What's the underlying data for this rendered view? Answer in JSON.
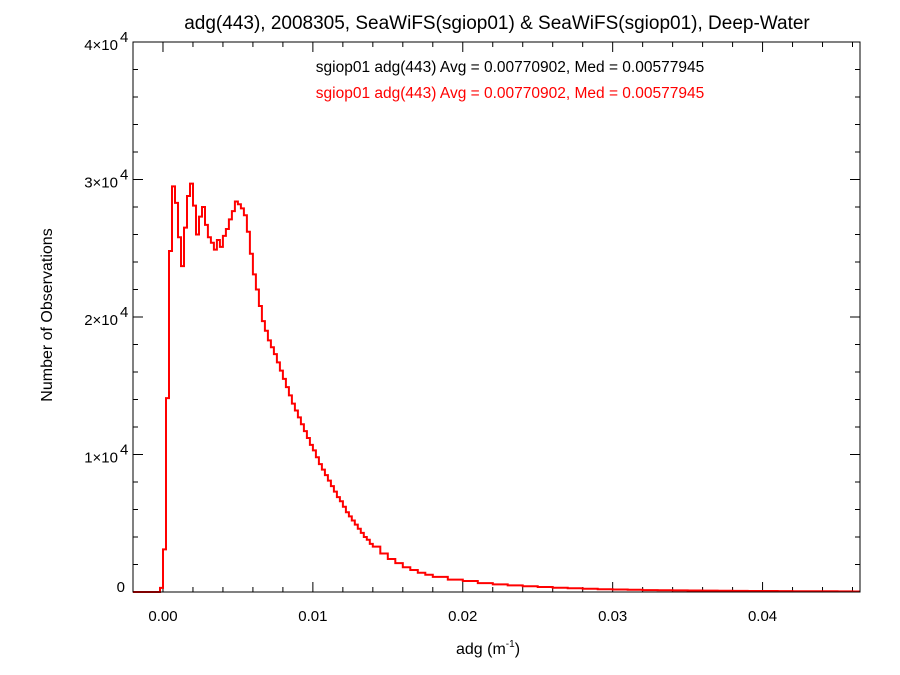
{
  "chart_data": {
    "type": "line",
    "style": "step-histogram",
    "title": "adg(443), 2008305, SeaWiFS(sgiop01) & SeaWiFS(sgiop01), Deep-Water",
    "xlabel": "adg (m",
    "xlabel_sup": "-1",
    "xlabel_suffix": ")",
    "ylabel": "Number of Observations",
    "xlim": [
      -0.002,
      0.0465
    ],
    "ylim": [
      0,
      40000
    ],
    "grid": false,
    "legend_position": "top-center",
    "x_ticks": [
      {
        "value": 0.0,
        "label": "0.00"
      },
      {
        "value": 0.01,
        "label": "0.01"
      },
      {
        "value": 0.02,
        "label": "0.02"
      },
      {
        "value": 0.03,
        "label": "0.03"
      },
      {
        "value": 0.04,
        "label": "0.04"
      }
    ],
    "y_ticks": [
      {
        "value": 0,
        "base": "0",
        "exp": ""
      },
      {
        "value": 10000,
        "base": "1×10",
        "exp": "4"
      },
      {
        "value": 20000,
        "base": "2×10",
        "exp": "4"
      },
      {
        "value": 30000,
        "base": "3×10",
        "exp": "4"
      },
      {
        "value": 40000,
        "base": "4×10",
        "exp": "4"
      }
    ],
    "annotations": [
      {
        "text": "sgiop01 adg(443) Avg = 0.00770902, Med = 0.00577945",
        "color": "#000000"
      },
      {
        "text": "sgiop01 adg(443) Avg = 0.00770902, Med = 0.00577945",
        "color": "#ff0000"
      }
    ],
    "series": [
      {
        "color": "#ff0000",
        "x": [
          -0.002,
          -0.0018,
          -0.0016,
          -0.0014,
          -0.0012,
          -0.001,
          -0.0008,
          -0.0006,
          -0.0004,
          -0.0002,
          0.0,
          0.0002,
          0.0004,
          0.0006,
          0.0008,
          0.001,
          0.0012,
          0.0014,
          0.0016,
          0.0018,
          0.002,
          0.0022,
          0.0024,
          0.0026,
          0.0028,
          0.003,
          0.0032,
          0.0034,
          0.0036,
          0.0038,
          0.004,
          0.0042,
          0.0044,
          0.0046,
          0.0048,
          0.005,
          0.0052,
          0.0054,
          0.0056,
          0.0058,
          0.006,
          0.0062,
          0.0064,
          0.0066,
          0.0068,
          0.007,
          0.0072,
          0.0074,
          0.0076,
          0.0078,
          0.008,
          0.0082,
          0.0084,
          0.0086,
          0.0088,
          0.009,
          0.0092,
          0.0094,
          0.0096,
          0.0098,
          0.01,
          0.0102,
          0.0104,
          0.0106,
          0.0108,
          0.011,
          0.0112,
          0.0114,
          0.0116,
          0.0118,
          0.012,
          0.0122,
          0.0124,
          0.0126,
          0.0128,
          0.013,
          0.0132,
          0.0134,
          0.0136,
          0.0138,
          0.014,
          0.0145,
          0.015,
          0.0155,
          0.016,
          0.0165,
          0.017,
          0.0175,
          0.018,
          0.019,
          0.02,
          0.021,
          0.022,
          0.023,
          0.024,
          0.025,
          0.026,
          0.027,
          0.028,
          0.029,
          0.03,
          0.031,
          0.032,
          0.033,
          0.034,
          0.035,
          0.036,
          0.037,
          0.038,
          0.039,
          0.04,
          0.041,
          0.042,
          0.043,
          0.044,
          0.045,
          0.046
        ],
        "y": [
          0,
          0,
          0,
          0,
          0,
          0,
          0,
          0,
          0,
          300,
          3100,
          14100,
          24800,
          29500,
          28300,
          25800,
          23700,
          26500,
          28800,
          29700,
          28100,
          26000,
          27300,
          28000,
          26700,
          25800,
          25400,
          24900,
          25600,
          25100,
          25900,
          26400,
          27100,
          27700,
          28400,
          28200,
          27900,
          27400,
          26200,
          24600,
          23100,
          22000,
          20800,
          19700,
          19000,
          18300,
          17800,
          17300,
          16700,
          16100,
          15500,
          14900,
          14300,
          13700,
          13200,
          12700,
          12200,
          11700,
          11200,
          10700,
          10300,
          9800,
          9300,
          8900,
          8500,
          8100,
          7700,
          7300,
          6900,
          6600,
          6200,
          5800,
          5500,
          5200,
          4900,
          4600,
          4300,
          4000,
          3800,
          3500,
          3300,
          2800,
          2400,
          2100,
          1800,
          1600,
          1400,
          1250,
          1100,
          900,
          800,
          650,
          550,
          480,
          420,
          360,
          310,
          270,
          230,
          200,
          180,
          160,
          140,
          130,
          120,
          110,
          100,
          90,
          80,
          75,
          70,
          65,
          60,
          55,
          50,
          45,
          40
        ]
      }
    ]
  }
}
